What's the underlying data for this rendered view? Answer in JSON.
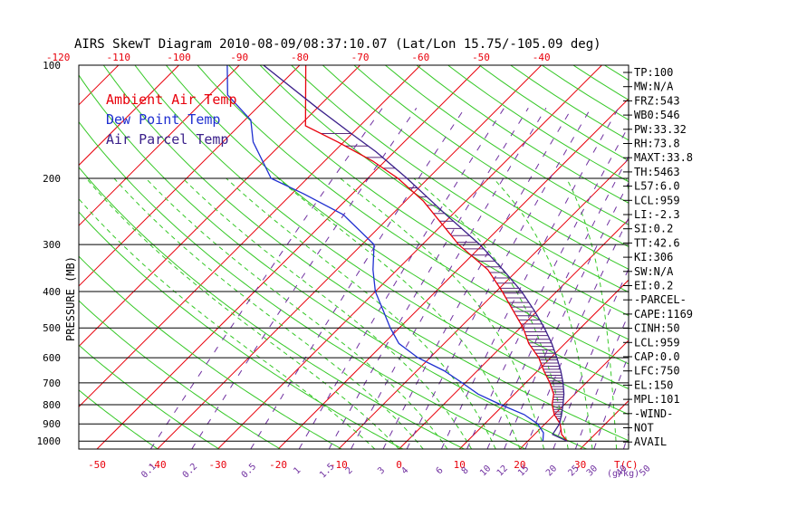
{
  "colors": {
    "ambient": "#e8000b",
    "dewpoint": "#1f2fd0",
    "parcel": "#3a1f8a",
    "isotherm": "#e8000b",
    "dry_adiabat": "#35c826",
    "moist_adiabat": "#35c826",
    "mixing_ratio": "#7030a0",
    "isobar": "#000000",
    "hatch": "#5a2a7a"
  },
  "chart_data": {
    "type": "line",
    "title": "AIRS SkewT Diagram 2010-08-09/08:37:10.07 (Lat/Lon 15.75/-105.09 deg)",
    "ylabel": "PRESSURE (MB)",
    "xlabel": "T(C)",
    "mixing_ratio_unit": "g/kg",
    "y_scale": "log",
    "ylim": [
      1050,
      100
    ],
    "xlim_at_1050mb": [
      -53,
      38
    ],
    "pressure_ticks": [
      100,
      200,
      300,
      400,
      500,
      600,
      700,
      800,
      900,
      1000
    ],
    "bottom_temp_ticks": [
      -50,
      -40,
      -30,
      -20,
      -10,
      0,
      10,
      20,
      30
    ],
    "bottom_temp_tick_labels": [
      "-50",
      "-40",
      "-30",
      "-20",
      "-10",
      "0",
      "10",
      "20",
      "30"
    ],
    "top_temp_ticks": [
      -120,
      -110,
      -100,
      -90,
      -80,
      -70,
      -60,
      -50,
      -40
    ],
    "top_temp_tick_labels": [
      "-120",
      "-110",
      "-100",
      "-90",
      "-80",
      "-70",
      "-60",
      "-50",
      "-40"
    ],
    "mixing_ratio_ticks": [
      0.1,
      0.2,
      0.5,
      1,
      1.5,
      2,
      3,
      4,
      6,
      8,
      10,
      12,
      15,
      20,
      25,
      30,
      40,
      50
    ],
    "mixing_ratio_tick_labels": [
      "0.1",
      "0.2",
      "0.5",
      "1",
      "1.5",
      "2",
      "3",
      "4",
      "6",
      "8",
      "10",
      "12",
      "15",
      "20",
      "25",
      "30",
      "40",
      "50"
    ],
    "legend": [
      "Ambient Air Temp",
      "Dew Point Temp",
      "Air Parcel Temp"
    ],
    "legend_position": "top-left",
    "grid": true,
    "series": [
      {
        "name": "Ambient Air Temp",
        "points": [
          [
            1000,
            26.5
          ],
          [
            960,
            24.5
          ],
          [
            900,
            22.5
          ],
          [
            850,
            20
          ],
          [
            800,
            18
          ],
          [
            750,
            16.5
          ],
          [
            700,
            14
          ],
          [
            650,
            11
          ],
          [
            600,
            8
          ],
          [
            550,
            4
          ],
          [
            500,
            0.5
          ],
          [
            450,
            -4
          ],
          [
            400,
            -9
          ],
          [
            350,
            -15
          ],
          [
            300,
            -24
          ],
          [
            260,
            -31
          ],
          [
            230,
            -37
          ],
          [
            200,
            -45
          ],
          [
            180,
            -52
          ],
          [
            160,
            -61
          ],
          [
            145,
            -69
          ],
          [
            100,
            -79
          ]
        ]
      },
      {
        "name": "Dew Point Temp",
        "points": [
          [
            1000,
            22.5
          ],
          [
            950,
            21.2
          ],
          [
            900,
            18.8
          ],
          [
            850,
            15
          ],
          [
            800,
            9.5
          ],
          [
            750,
            4
          ],
          [
            700,
            -0.5
          ],
          [
            650,
            -5.5
          ],
          [
            600,
            -12
          ],
          [
            550,
            -17.5
          ],
          [
            500,
            -21.5
          ],
          [
            450,
            -25.5
          ],
          [
            400,
            -30
          ],
          [
            350,
            -34
          ],
          [
            300,
            -38
          ],
          [
            250,
            -48
          ],
          [
            220,
            -58
          ],
          [
            200,
            -66
          ],
          [
            160,
            -75
          ],
          [
            140,
            -79
          ],
          [
            120,
            -87
          ],
          [
            100,
            -92
          ]
        ]
      },
      {
        "name": "Air Parcel Temp",
        "points": [
          [
            1000,
            26.5
          ],
          [
            960,
            23
          ],
          [
            900,
            22.4
          ],
          [
            850,
            21.2
          ],
          [
            800,
            19.8
          ],
          [
            750,
            18.2
          ],
          [
            700,
            16.2
          ],
          [
            650,
            13.8
          ],
          [
            600,
            11
          ],
          [
            550,
            7.8
          ],
          [
            500,
            4
          ],
          [
            450,
            -0.5
          ],
          [
            400,
            -5.8
          ],
          [
            350,
            -12.5
          ],
          [
            300,
            -20.5
          ],
          [
            250,
            -31
          ],
          [
            200,
            -43.5
          ],
          [
            170,
            -53
          ],
          [
            150,
            -61
          ],
          [
            130,
            -70
          ],
          [
            100,
            -86
          ]
        ]
      }
    ]
  },
  "indices": [
    "TP:100",
    "MW:N/A",
    "FRZ:543",
    "WB0:546",
    "PW:33.32",
    "RH:73.8",
    "MAXT:33.8",
    "TH:5463",
    "L57:6.0",
    "LCL:959",
    "LI:-2.3",
    "SI:0.2",
    "TT:42.6",
    "KI:306",
    "SW:N/A",
    "EI:0.2",
    "-PARCEL-",
    "CAPE:1169",
    "CINH:50",
    "LCL:959",
    "CAP:0.0",
    "LFC:750",
    "EL:150",
    "MPL:101",
    "-WIND-",
    "NOT",
    "AVAIL"
  ]
}
